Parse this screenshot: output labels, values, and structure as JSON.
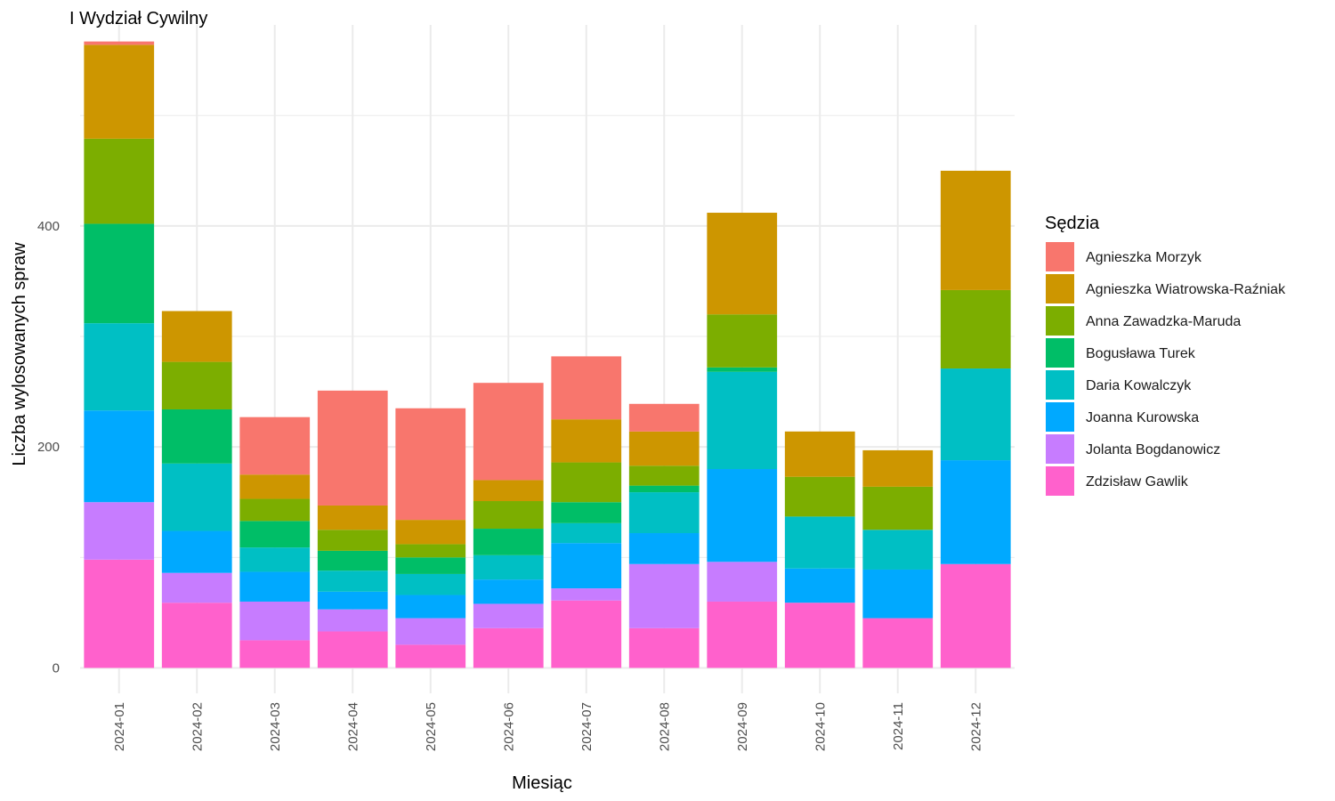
{
  "chart_data": {
    "type": "bar",
    "stacked": true,
    "title": "I Wydział Cywilny",
    "xlabel": "Miesiąc",
    "ylabel": "Liczba wylosowanych spraw",
    "categories": [
      "2024-01",
      "2024-02",
      "2024-03",
      "2024-04",
      "2024-05",
      "2024-06",
      "2024-07",
      "2024-08",
      "2024-09",
      "2024-10",
      "2024-11",
      "2024-12"
    ],
    "ylim": [
      -23,
      582
    ],
    "yticks": [
      0,
      200,
      400
    ],
    "grid": true,
    "legend": {
      "title": "Sędzia",
      "position": "right"
    },
    "series": [
      {
        "name": "Zdzisław Gawlik",
        "color": "#FF61CC",
        "values": [
          98,
          59,
          25,
          33,
          21,
          36,
          61,
          36,
          60,
          59,
          45,
          94
        ]
      },
      {
        "name": "Jolanta Bogdanowicz",
        "color": "#C77CFF",
        "values": [
          52,
          27,
          35,
          20,
          24,
          22,
          11,
          58,
          36,
          0,
          0,
          0
        ]
      },
      {
        "name": "Joanna Kurowska",
        "color": "#00A9FF",
        "values": [
          83,
          38,
          27,
          16,
          21,
          22,
          41,
          28,
          84,
          31,
          44,
          94
        ]
      },
      {
        "name": "Daria Kowalczyk",
        "color": "#00BFC4",
        "values": [
          79,
          61,
          22,
          19,
          19,
          22,
          18,
          37,
          88,
          47,
          36,
          83
        ]
      },
      {
        "name": "Bogusława Turek",
        "color": "#00BE67",
        "values": [
          90,
          49,
          24,
          18,
          15,
          24,
          19,
          6,
          4,
          0,
          0,
          0
        ]
      },
      {
        "name": "Anna Zawadzka-Maruda",
        "color": "#7CAE00",
        "values": [
          77,
          43,
          20,
          19,
          12,
          25,
          36,
          18,
          48,
          36,
          39,
          71
        ]
      },
      {
        "name": "Agnieszka Wiatrowska-Raźniak",
        "color": "#CD9600",
        "values": [
          85,
          46,
          22,
          22,
          22,
          19,
          39,
          31,
          92,
          41,
          33,
          108
        ]
      },
      {
        "name": "Agnieszka Morzyk",
        "color": "#F8766D",
        "values": [
          3,
          0,
          52,
          104,
          101,
          88,
          57,
          25,
          0,
          0,
          0,
          0
        ]
      }
    ]
  }
}
